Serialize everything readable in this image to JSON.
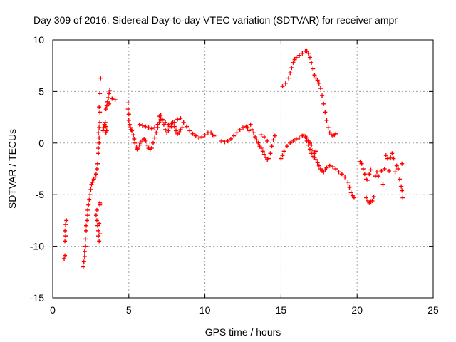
{
  "chart_data": {
    "type": "scatter",
    "title": "Day 309 of 2016, Sidereal Day-to-day VTEC variation (SDTVAR) for receiver ampr",
    "xlabel": "GPS time / hours",
    "ylabel": "SDTVAR / TECUs",
    "xlim": [
      0,
      25
    ],
    "ylim": [
      -15,
      10
    ],
    "xticks": [
      0,
      5,
      10,
      15,
      20,
      25
    ],
    "yticks": [
      -15,
      -10,
      -5,
      0,
      5,
      10
    ],
    "grid": true,
    "marker": "+",
    "series": [
      {
        "name": "SDTVAR",
        "color": "#ff0000",
        "points": [
          [
            0.75,
            -11.2
          ],
          [
            0.8,
            -10.9
          ],
          [
            0.8,
            -9.5
          ],
          [
            0.85,
            -9.0
          ],
          [
            0.8,
            -8.5
          ],
          [
            0.85,
            -7.9
          ],
          [
            0.9,
            -7.5
          ],
          [
            2.0,
            -12.0
          ],
          [
            2.05,
            -11.5
          ],
          [
            2.1,
            -11.0
          ],
          [
            2.1,
            -10.5
          ],
          [
            2.15,
            -10.0
          ],
          [
            2.15,
            -9.3
          ],
          [
            2.2,
            -8.5
          ],
          [
            2.2,
            -8.0
          ],
          [
            2.25,
            -7.5
          ],
          [
            2.3,
            -7.0
          ],
          [
            2.3,
            -6.5
          ],
          [
            2.35,
            -6.0
          ],
          [
            2.4,
            -5.5
          ],
          [
            2.45,
            -5.0
          ],
          [
            2.5,
            -4.5
          ],
          [
            2.55,
            -4.0
          ],
          [
            2.6,
            -3.8
          ],
          [
            2.7,
            -3.5
          ],
          [
            2.8,
            -3.3
          ],
          [
            2.85,
            -7.0
          ],
          [
            2.9,
            -6.5
          ],
          [
            2.9,
            -7.5
          ],
          [
            2.95,
            -8.0
          ],
          [
            3.0,
            -8.5
          ],
          [
            3.0,
            -9.0
          ],
          [
            3.05,
            -9.5
          ],
          [
            3.1,
            -8.8
          ],
          [
            3.05,
            -7.8
          ],
          [
            3.1,
            -6.0
          ],
          [
            3.1,
            -5.8
          ],
          [
            2.85,
            -3.0
          ],
          [
            2.9,
            -2.5
          ],
          [
            2.95,
            -2.0
          ],
          [
            3.0,
            -1.0
          ],
          [
            3.0,
            -0.5
          ],
          [
            3.05,
            0.0
          ],
          [
            3.05,
            0.5
          ],
          [
            3.0,
            1.0
          ],
          [
            3.05,
            1.5
          ],
          [
            3.1,
            2.0
          ],
          [
            3.1,
            3.0
          ],
          [
            3.05,
            3.5
          ],
          [
            3.1,
            4.8
          ],
          [
            3.15,
            6.3
          ],
          [
            3.3,
            1.2
          ],
          [
            3.35,
            1.5
          ],
          [
            3.4,
            1.8
          ],
          [
            3.45,
            2.0
          ],
          [
            3.5,
            1.6
          ],
          [
            3.55,
            1.2
          ],
          [
            3.5,
            1.0
          ],
          [
            3.5,
            3.3
          ],
          [
            3.55,
            3.6
          ],
          [
            3.6,
            4.0
          ],
          [
            3.65,
            4.4
          ],
          [
            3.7,
            4.8
          ],
          [
            3.75,
            5.1
          ],
          [
            3.7,
            3.8
          ],
          [
            3.9,
            4.3
          ],
          [
            4.1,
            4.2
          ],
          [
            4.95,
            3.9
          ],
          [
            4.95,
            3.3
          ],
          [
            5.0,
            2.8
          ],
          [
            5.0,
            2.2
          ],
          [
            5.05,
            1.8
          ],
          [
            5.1,
            1.5
          ],
          [
            5.15,
            1.3
          ],
          [
            5.2,
            1.2
          ],
          [
            5.3,
            0.8
          ],
          [
            5.35,
            0.4
          ],
          [
            5.4,
            0.0
          ],
          [
            5.5,
            -0.4
          ],
          [
            5.55,
            -0.6
          ],
          [
            5.6,
            -0.5
          ],
          [
            5.7,
            -0.2
          ],
          [
            5.8,
            0.1
          ],
          [
            5.9,
            0.3
          ],
          [
            6.0,
            0.4
          ],
          [
            6.1,
            0.2
          ],
          [
            6.2,
            -0.2
          ],
          [
            6.3,
            -0.5
          ],
          [
            6.4,
            -0.6
          ],
          [
            6.5,
            -0.5
          ],
          [
            6.6,
            0.0
          ],
          [
            6.7,
            0.5
          ],
          [
            6.8,
            1.0
          ],
          [
            6.9,
            1.5
          ],
          [
            7.0,
            2.0
          ],
          [
            7.1,
            2.3
          ],
          [
            7.2,
            2.2
          ],
          [
            7.3,
            1.8
          ],
          [
            7.4,
            1.3
          ],
          [
            7.5,
            1.0
          ],
          [
            7.6,
            1.2
          ],
          [
            7.7,
            1.6
          ],
          [
            7.8,
            1.9
          ],
          [
            7.9,
            2.0
          ],
          [
            8.0,
            1.6
          ],
          [
            8.1,
            1.2
          ],
          [
            8.2,
            0.9
          ],
          [
            8.3,
            1.0
          ],
          [
            8.4,
            1.3
          ],
          [
            8.5,
            1.5
          ],
          [
            5.7,
            1.8
          ],
          [
            5.9,
            1.7
          ],
          [
            6.1,
            1.6
          ],
          [
            6.3,
            1.5
          ],
          [
            6.5,
            1.4
          ],
          [
            6.7,
            1.5
          ],
          [
            6.9,
            1.8
          ],
          [
            7.0,
            2.6
          ],
          [
            7.1,
            2.7
          ],
          [
            7.2,
            2.3
          ],
          [
            7.4,
            2.0
          ],
          [
            7.6,
            1.8
          ],
          [
            7.8,
            1.6
          ],
          [
            8.0,
            2.0
          ],
          [
            8.2,
            2.3
          ],
          [
            8.4,
            2.4
          ],
          [
            8.6,
            2.0
          ],
          [
            8.8,
            1.6
          ],
          [
            9.0,
            1.2
          ],
          [
            9.2,
            0.9
          ],
          [
            9.4,
            0.7
          ],
          [
            9.6,
            0.5
          ],
          [
            9.8,
            0.6
          ],
          [
            10.0,
            0.8
          ],
          [
            10.2,
            1.0
          ],
          [
            10.4,
            1.0
          ],
          [
            10.5,
            0.8
          ],
          [
            10.6,
            0.7
          ],
          [
            11.1,
            0.2
          ],
          [
            11.3,
            0.1
          ],
          [
            11.5,
            0.2
          ],
          [
            11.7,
            0.4
          ],
          [
            11.9,
            0.7
          ],
          [
            12.1,
            1.0
          ],
          [
            12.3,
            1.3
          ],
          [
            12.5,
            1.5
          ],
          [
            12.7,
            1.6
          ],
          [
            12.8,
            1.5
          ],
          [
            12.9,
            1.2
          ],
          [
            13.0,
            1.8
          ],
          [
            13.1,
            1.3
          ],
          [
            13.2,
            1.0
          ],
          [
            13.3,
            0.6
          ],
          [
            13.4,
            0.3
          ],
          [
            13.5,
            0.0
          ],
          [
            13.6,
            -0.3
          ],
          [
            13.7,
            -0.5
          ],
          [
            13.8,
            -0.8
          ],
          [
            13.9,
            -1.1
          ],
          [
            14.0,
            -1.4
          ],
          [
            14.1,
            -1.6
          ],
          [
            14.2,
            -1.5
          ],
          [
            14.3,
            -1.0
          ],
          [
            14.4,
            -0.3
          ],
          [
            14.5,
            0.3
          ],
          [
            14.6,
            0.7
          ],
          [
            13.7,
            0.8
          ],
          [
            13.9,
            0.6
          ],
          [
            14.1,
            0.2
          ],
          [
            15.0,
            -1.5
          ],
          [
            15.1,
            -1.2
          ],
          [
            15.2,
            -0.8
          ],
          [
            15.4,
            -0.3
          ],
          [
            15.6,
            0.0
          ],
          [
            15.8,
            0.2
          ],
          [
            16.0,
            0.4
          ],
          [
            16.2,
            0.5
          ],
          [
            16.4,
            0.7
          ],
          [
            16.5,
            0.8
          ],
          [
            16.6,
            0.6
          ],
          [
            16.7,
            0.2
          ],
          [
            16.8,
            -0.2
          ],
          [
            16.9,
            -0.6
          ],
          [
            17.0,
            -1.0
          ],
          [
            17.1,
            -1.3
          ],
          [
            17.2,
            -1.4
          ],
          [
            17.3,
            -1.6
          ],
          [
            17.4,
            -1.9
          ],
          [
            17.5,
            -2.2
          ],
          [
            17.6,
            -2.5
          ],
          [
            17.7,
            -2.7
          ],
          [
            17.8,
            -2.8
          ],
          [
            17.9,
            -2.6
          ],
          [
            18.0,
            -2.4
          ],
          [
            18.2,
            -2.2
          ],
          [
            18.4,
            -2.3
          ],
          [
            18.6,
            -2.5
          ],
          [
            18.8,
            -2.8
          ],
          [
            19.0,
            -3.0
          ],
          [
            19.2,
            -3.3
          ],
          [
            19.4,
            -3.8
          ],
          [
            19.5,
            -4.3
          ],
          [
            19.6,
            -4.8
          ],
          [
            19.7,
            -5.1
          ],
          [
            19.8,
            -5.3
          ],
          [
            16.7,
            0.5
          ],
          [
            16.8,
            0.2
          ],
          [
            16.9,
            0.0
          ],
          [
            17.0,
            -0.2
          ],
          [
            17.1,
            -0.7
          ],
          [
            17.2,
            -1.0
          ],
          [
            17.3,
            -0.8
          ],
          [
            15.1,
            5.5
          ],
          [
            15.3,
            5.8
          ],
          [
            15.5,
            6.3
          ],
          [
            15.6,
            6.8
          ],
          [
            15.7,
            7.3
          ],
          [
            15.8,
            7.8
          ],
          [
            15.9,
            8.1
          ],
          [
            16.0,
            8.3
          ],
          [
            16.2,
            8.5
          ],
          [
            16.4,
            8.7
          ],
          [
            16.6,
            8.9
          ],
          [
            16.7,
            8.9
          ],
          [
            16.8,
            8.7
          ],
          [
            16.9,
            8.3
          ],
          [
            17.0,
            7.8
          ],
          [
            17.1,
            7.2
          ],
          [
            17.2,
            6.6
          ],
          [
            17.3,
            6.3
          ],
          [
            17.4,
            6.1
          ],
          [
            17.5,
            5.8
          ],
          [
            17.6,
            5.3
          ],
          [
            17.7,
            4.6
          ],
          [
            17.8,
            3.8
          ],
          [
            17.9,
            3.0
          ],
          [
            18.0,
            2.2
          ],
          [
            18.1,
            1.5
          ],
          [
            18.2,
            1.0
          ],
          [
            18.3,
            0.8
          ],
          [
            18.4,
            0.7
          ],
          [
            18.5,
            0.8
          ],
          [
            18.6,
            0.9
          ],
          [
            20.2,
            -1.8
          ],
          [
            20.3,
            -2.0
          ],
          [
            20.4,
            -2.5
          ],
          [
            20.5,
            -3.0
          ],
          [
            20.6,
            -3.5
          ],
          [
            20.7,
            -3.6
          ],
          [
            20.8,
            -3.0
          ],
          [
            20.9,
            -2.6
          ],
          [
            20.6,
            -5.3
          ],
          [
            20.7,
            -5.6
          ],
          [
            20.8,
            -5.8
          ],
          [
            20.9,
            -5.7
          ],
          [
            21.0,
            -5.6
          ],
          [
            21.1,
            -5.2
          ],
          [
            21.2,
            -3.2
          ],
          [
            21.3,
            -2.8
          ],
          [
            21.4,
            -3.2
          ],
          [
            21.6,
            -2.7
          ],
          [
            21.7,
            -4.0
          ],
          [
            21.8,
            -2.5
          ],
          [
            21.9,
            -1.2
          ],
          [
            22.0,
            -1.5
          ],
          [
            22.1,
            -2.7
          ],
          [
            22.2,
            -1.4
          ],
          [
            22.3,
            -1.0
          ],
          [
            22.4,
            -1.5
          ],
          [
            22.5,
            -2.8
          ],
          [
            22.6,
            -2.2
          ],
          [
            22.7,
            -2.5
          ],
          [
            22.8,
            -3.5
          ],
          [
            22.9,
            -4.2
          ],
          [
            22.95,
            -4.6
          ],
          [
            23.0,
            -5.3
          ],
          [
            22.95,
            -2.0
          ]
        ]
      }
    ]
  }
}
